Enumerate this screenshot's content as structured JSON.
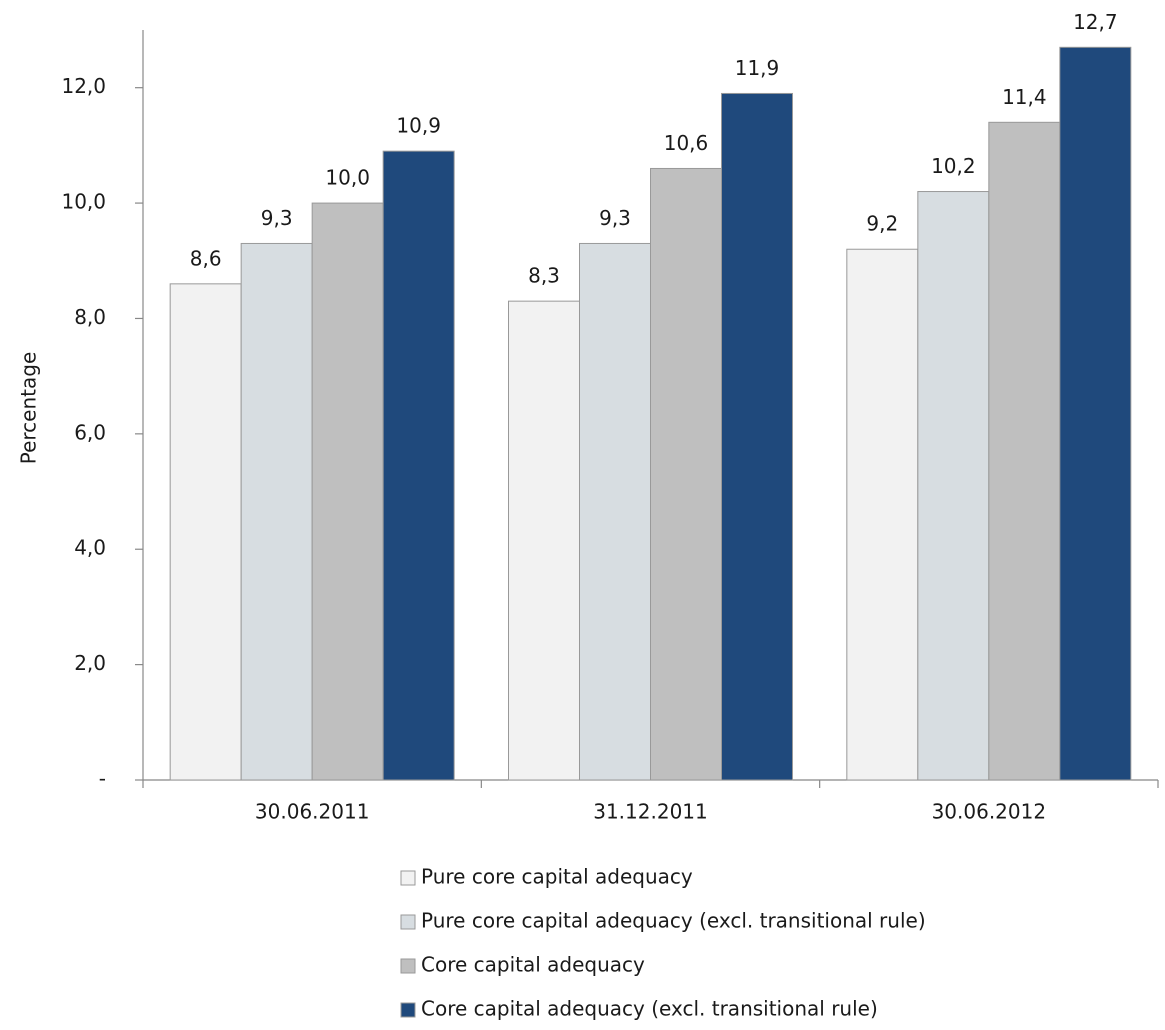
{
  "chart_data": {
    "type": "bar",
    "y_label": "Percentage",
    "categories": [
      "30.06.2011",
      "31.12.2011",
      "30.06.2012"
    ],
    "series": [
      {
        "name": "Pure core capital adequacy",
        "color": "#f2f2f2",
        "values": [
          8.6,
          8.3,
          9.2
        ],
        "value_labels": [
          "8,6",
          "8,3",
          "9,2"
        ]
      },
      {
        "name": "Pure core capital adequacy (excl. transitional rule)",
        "color": "#d7dde1",
        "values": [
          9.3,
          9.3,
          10.2
        ],
        "value_labels": [
          "9,3",
          "9,3",
          "10,2"
        ]
      },
      {
        "name": "Core capital adequacy",
        "color": "#bfbfbf",
        "values": [
          10.0,
          10.6,
          11.4
        ],
        "value_labels": [
          "10,0",
          "10,6",
          "11,4"
        ]
      },
      {
        "name": "Core capital adequacy (excl. transitional rule)",
        "color": "#1f497c",
        "values": [
          10.9,
          11.9,
          12.7
        ],
        "value_labels": [
          "10,9",
          "11,9",
          "12,7"
        ]
      }
    ],
    "ylim": [
      0,
      13
    ],
    "yticks": [
      {
        "value": 0,
        "label": "-"
      },
      {
        "value": 2,
        "label": "2,0"
      },
      {
        "value": 4,
        "label": "4,0"
      },
      {
        "value": 6,
        "label": "6,0"
      },
      {
        "value": 8,
        "label": "8,0"
      },
      {
        "value": 10,
        "label": "10,0"
      },
      {
        "value": 12,
        "label": "12,0"
      }
    ],
    "legend": "bottom"
  }
}
